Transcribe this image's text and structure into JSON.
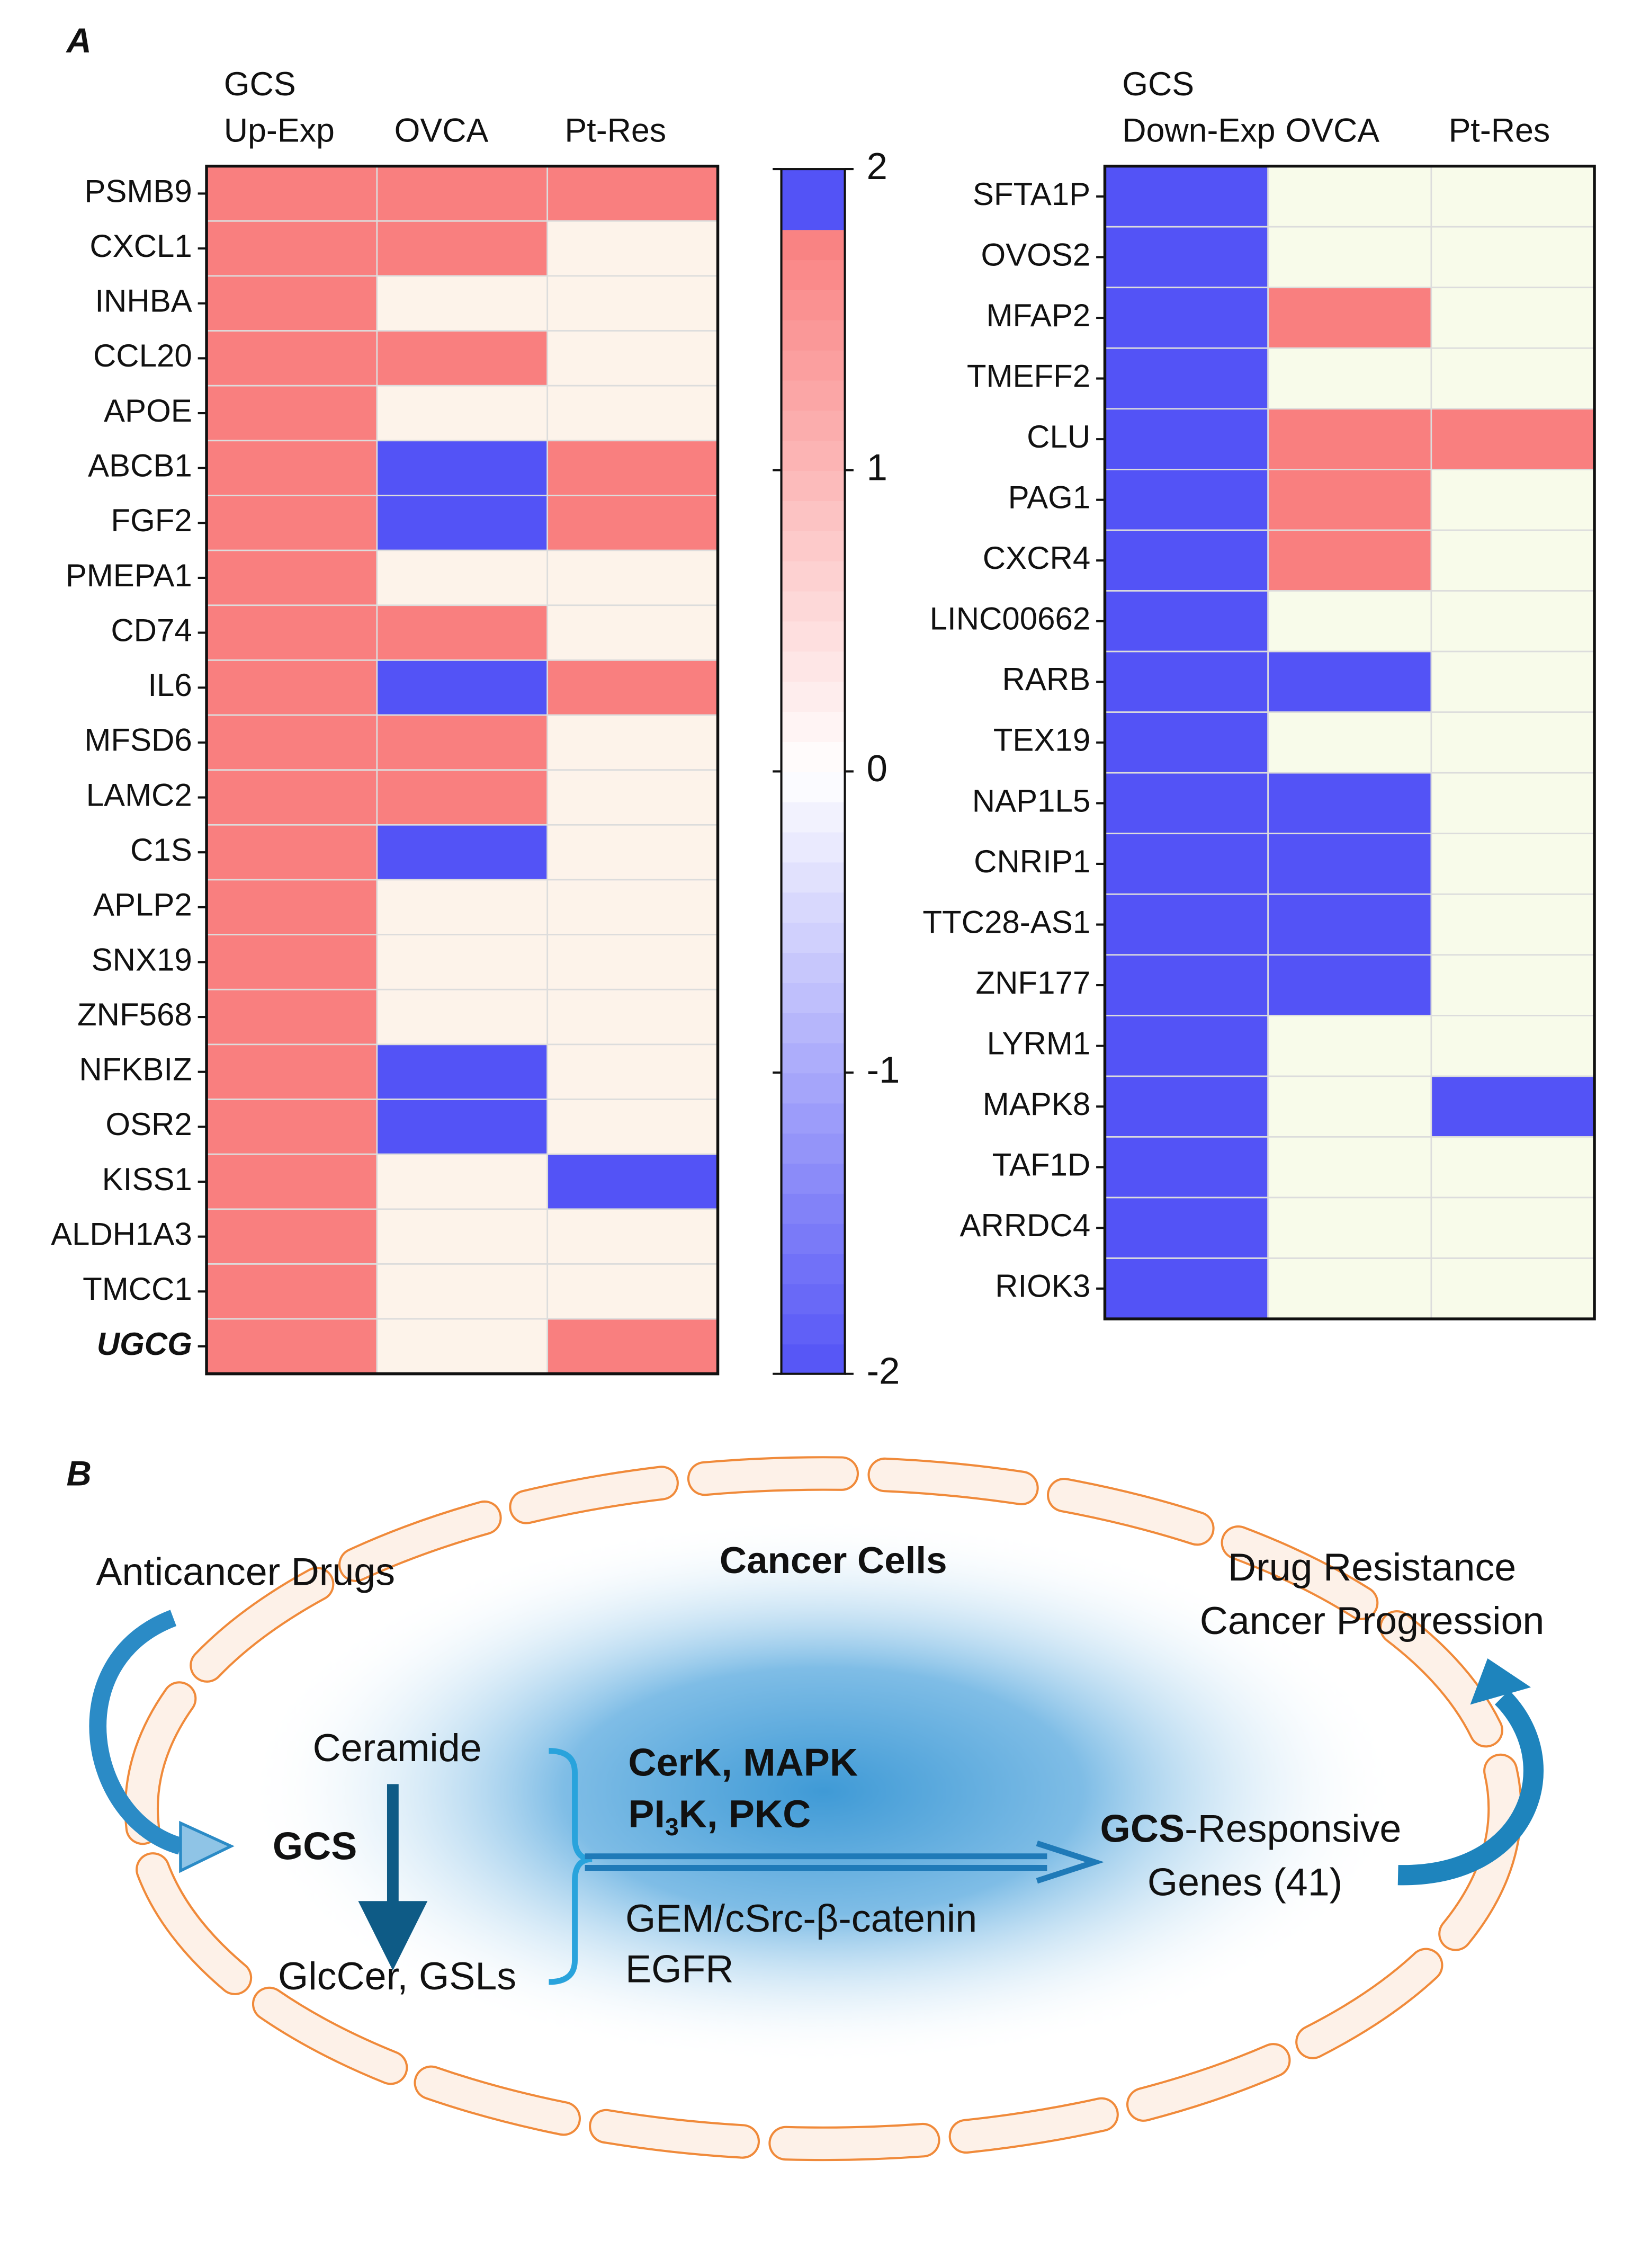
{
  "panel_a": {
    "label": "A",
    "colorscale": [
      {
        "value": -2,
        "color": "#5353f6"
      },
      {
        "value": 0,
        "color": "#ffffff"
      },
      {
        "value": 1.8,
        "color": "#f97f7f"
      }
    ],
    "heatmaps": [
      {
        "column_labels": [
          [
            "GCS",
            "Up-Exp"
          ],
          [
            "OVCA"
          ],
          [
            "Pt-Res"
          ]
        ],
        "zero_color": "#fdf3ea",
        "rows": [
          {
            "gene": "PSMB9",
            "values": [
              1.8,
              1.8,
              1.8
            ]
          },
          {
            "gene": "CXCL1",
            "values": [
              1.8,
              1.8,
              0
            ]
          },
          {
            "gene": "INHBA",
            "values": [
              1.8,
              0,
              0
            ]
          },
          {
            "gene": "CCL20",
            "values": [
              1.8,
              1.8,
              0
            ]
          },
          {
            "gene": "APOE",
            "values": [
              1.8,
              0,
              0
            ]
          },
          {
            "gene": "ABCB1",
            "values": [
              1.8,
              -2,
              1.8
            ]
          },
          {
            "gene": "FGF2",
            "values": [
              1.8,
              -2,
              1.8
            ]
          },
          {
            "gene": "PMEPA1",
            "values": [
              1.8,
              0,
              0
            ]
          },
          {
            "gene": "CD74",
            "values": [
              1.8,
              1.8,
              0
            ]
          },
          {
            "gene": "IL6",
            "values": [
              1.8,
              -2,
              1.8
            ]
          },
          {
            "gene": "MFSD6",
            "values": [
              1.8,
              1.8,
              0
            ]
          },
          {
            "gene": "LAMC2",
            "values": [
              1.8,
              1.8,
              0
            ]
          },
          {
            "gene": "C1S",
            "values": [
              1.8,
              -2,
              0
            ]
          },
          {
            "gene": "APLP2",
            "values": [
              1.8,
              0,
              0
            ]
          },
          {
            "gene": "SNX19",
            "values": [
              1.8,
              0,
              0
            ]
          },
          {
            "gene": "ZNF568",
            "values": [
              1.8,
              0,
              0
            ]
          },
          {
            "gene": "NFKBIZ",
            "values": [
              1.8,
              -2,
              0
            ]
          },
          {
            "gene": "OSR2",
            "values": [
              1.8,
              -2,
              0
            ]
          },
          {
            "gene": "KISS1",
            "values": [
              1.8,
              0,
              -2
            ]
          },
          {
            "gene": "ALDH1A3",
            "values": [
              1.8,
              0,
              0
            ]
          },
          {
            "gene": "TMCC1",
            "values": [
              1.8,
              0,
              0
            ]
          },
          {
            "gene": "UGCG",
            "values": [
              1.8,
              0,
              1.8
            ],
            "emphasis": true
          }
        ]
      },
      {
        "column_labels": [
          [
            "GCS",
            "Down-Exp"
          ],
          [
            "OVCA"
          ],
          [
            "Pt-Res"
          ]
        ],
        "zero_color": "#f8fbea",
        "rows": [
          {
            "gene": "SFTA1P",
            "values": [
              -2,
              0,
              0
            ]
          },
          {
            "gene": "OVOS2",
            "values": [
              -2,
              0,
              0
            ]
          },
          {
            "gene": "MFAP2",
            "values": [
              -2,
              1.8,
              0
            ]
          },
          {
            "gene": "TMEFF2",
            "values": [
              -2,
              0,
              0
            ]
          },
          {
            "gene": "CLU",
            "values": [
              -2,
              1.8,
              1.8
            ]
          },
          {
            "gene": "PAG1",
            "values": [
              -2,
              1.8,
              0
            ]
          },
          {
            "gene": "CXCR4",
            "values": [
              -2,
              1.8,
              0
            ]
          },
          {
            "gene": "LINC00662",
            "values": [
              -2,
              0,
              0
            ]
          },
          {
            "gene": "RARB",
            "values": [
              -2,
              -2,
              0
            ]
          },
          {
            "gene": "TEX19",
            "values": [
              -2,
              0,
              0
            ]
          },
          {
            "gene": "NAP1L5",
            "values": [
              -2,
              -2,
              0
            ]
          },
          {
            "gene": "CNRIP1",
            "values": [
              -2,
              -2,
              0
            ]
          },
          {
            "gene": "TTC28-AS1",
            "values": [
              -2,
              -2,
              0
            ]
          },
          {
            "gene": "ZNF177",
            "values": [
              -2,
              -2,
              0
            ]
          },
          {
            "gene": "LYRM1",
            "values": [
              -2,
              0,
              0
            ]
          },
          {
            "gene": "MAPK8",
            "values": [
              -2,
              0,
              -2
            ]
          },
          {
            "gene": "TAF1D",
            "values": [
              -2,
              0,
              0
            ]
          },
          {
            "gene": "ARRDC4",
            "values": [
              -2,
              0,
              0
            ]
          },
          {
            "gene": "RIOK3",
            "values": [
              -2,
              0,
              0
            ]
          }
        ]
      }
    ],
    "colorbar": {
      "ylim": [
        -2,
        2
      ],
      "yticks": [
        -2,
        -1,
        0,
        1,
        2
      ],
      "over_color": "#5353f6"
    }
  },
  "panel_b": {
    "label": "B",
    "cell_label": "Cancer Cells",
    "input": "Anticancer Drugs",
    "outputs": [
      "Drug Resistance",
      "Cancer Progression"
    ],
    "ceramide": "Ceramide",
    "gcs": "GCS",
    "glccer": "GlcCer, GSLs",
    "pathways_orange": [
      [
        "CerK, MAPK"
      ],
      [
        "PI",
        "3",
        "K, PKC"
      ]
    ],
    "pathways_green": [
      "GEM/cSrc-β-catenin",
      "EGFR"
    ],
    "target": [
      "GCS",
      "-Responsive"
    ],
    "target_line2": "Genes (41)"
  }
}
